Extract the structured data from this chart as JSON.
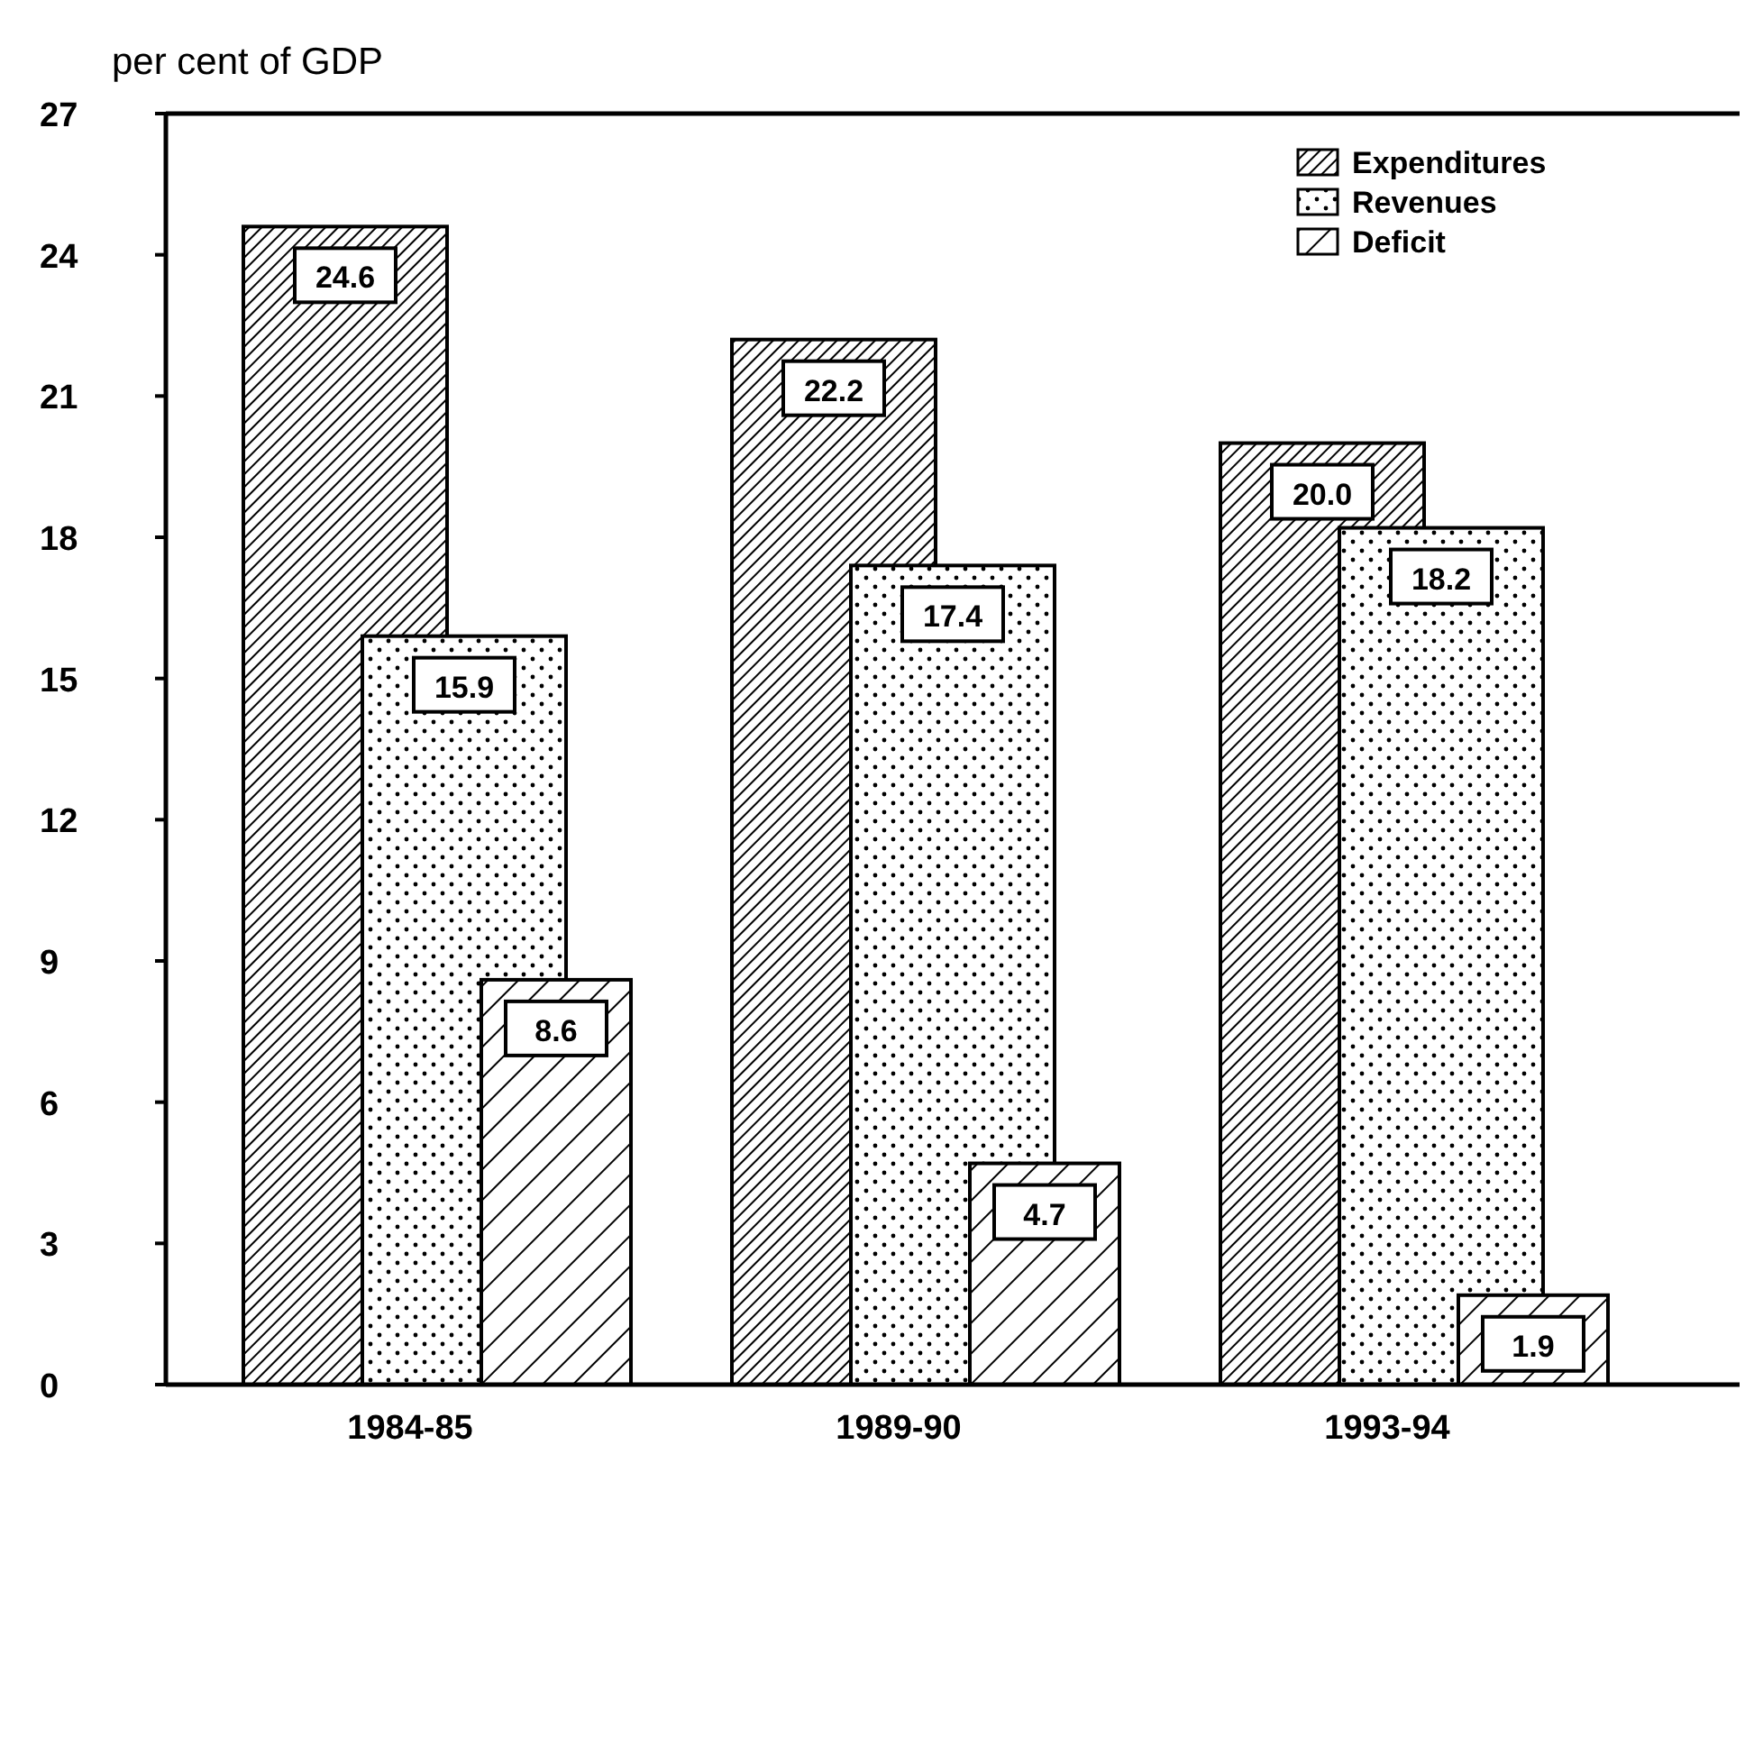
{
  "chart_data": {
    "type": "bar",
    "ylabel": "per cent of GDP",
    "categories": [
      "1984-85",
      "1989-90",
      "1993-94"
    ],
    "series": [
      {
        "name": "Expenditures",
        "color": "#000000",
        "values": [
          24.6,
          22.2,
          20.0
        ],
        "value_labels": [
          "24.6",
          "22.2",
          "20.0"
        ]
      },
      {
        "name": "Revenues",
        "color": "#000000",
        "values": [
          15.9,
          17.4,
          18.2
        ],
        "value_labels": [
          "15.9",
          "17.4",
          "18.2"
        ]
      },
      {
        "name": "Deficit",
        "color": "#000000",
        "values": [
          8.6,
          4.7,
          1.9
        ],
        "value_labels": [
          "8.6",
          "4.7",
          "1.9"
        ]
      }
    ],
    "ylim": [
      0,
      27
    ],
    "yticks": [
      0,
      3,
      6,
      9,
      12,
      15,
      18,
      21,
      24,
      27
    ],
    "grid": false,
    "legend": "top right"
  }
}
